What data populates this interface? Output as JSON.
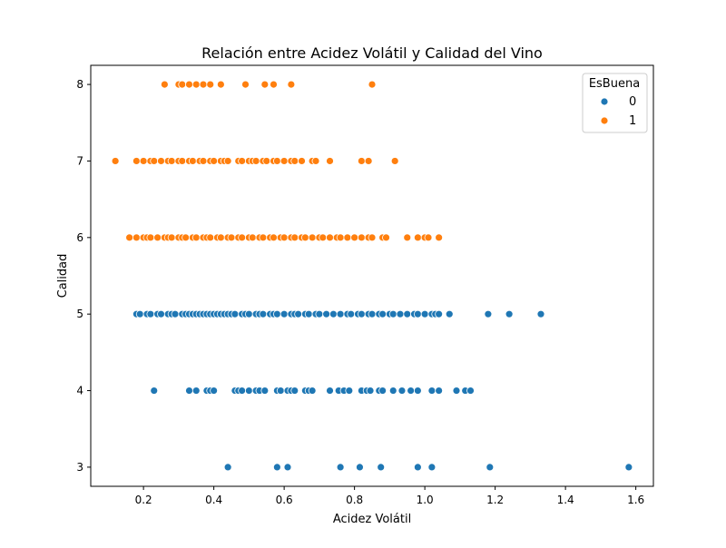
{
  "chart_data": {
    "type": "scatter",
    "title": "Relación entre Acidez Volátil y Calidad del Vino",
    "xlabel": "Acidez Volátil",
    "ylabel": "Calidad",
    "xlim": [
      0.05,
      1.65
    ],
    "ylim": [
      2.75,
      8.25
    ],
    "xticks": [
      "0.2",
      "0.4",
      "0.6",
      "0.8",
      "1.0",
      "1.2",
      "1.4",
      "1.6"
    ],
    "yticks": [
      "3",
      "4",
      "5",
      "6",
      "7",
      "8"
    ],
    "grid": false,
    "legend": {
      "title": "EsBuena",
      "position": "top-right"
    },
    "series": [
      {
        "name": "0",
        "color": "#1f77b4",
        "points": [
          [
            0.44,
            3
          ],
          [
            0.58,
            3
          ],
          [
            0.61,
            3
          ],
          [
            0.76,
            3
          ],
          [
            0.815,
            3
          ],
          [
            0.875,
            3
          ],
          [
            0.98,
            3
          ],
          [
            1.02,
            3
          ],
          [
            1.185,
            3
          ],
          [
            1.58,
            3
          ],
          [
            0.23,
            4
          ],
          [
            0.33,
            4
          ],
          [
            0.35,
            4
          ],
          [
            0.38,
            4
          ],
          [
            0.39,
            4
          ],
          [
            0.4,
            4
          ],
          [
            0.46,
            4
          ],
          [
            0.47,
            4
          ],
          [
            0.48,
            4
          ],
          [
            0.5,
            4
          ],
          [
            0.52,
            4
          ],
          [
            0.53,
            4
          ],
          [
            0.545,
            4
          ],
          [
            0.58,
            4
          ],
          [
            0.59,
            4
          ],
          [
            0.61,
            4
          ],
          [
            0.62,
            4
          ],
          [
            0.63,
            4
          ],
          [
            0.66,
            4
          ],
          [
            0.67,
            4
          ],
          [
            0.68,
            4
          ],
          [
            0.73,
            4
          ],
          [
            0.755,
            4
          ],
          [
            0.77,
            4
          ],
          [
            0.785,
            4
          ],
          [
            0.82,
            4
          ],
          [
            0.835,
            4
          ],
          [
            0.845,
            4
          ],
          [
            0.87,
            4
          ],
          [
            0.88,
            4
          ],
          [
            0.91,
            4
          ],
          [
            0.935,
            4
          ],
          [
            0.96,
            4
          ],
          [
            0.98,
            4
          ],
          [
            1.02,
            4
          ],
          [
            1.04,
            4
          ],
          [
            1.09,
            4
          ],
          [
            1.115,
            4
          ],
          [
            1.13,
            4
          ],
          [
            0.18,
            5
          ],
          [
            0.19,
            5
          ],
          [
            0.21,
            5
          ],
          [
            0.22,
            5
          ],
          [
            0.24,
            5
          ],
          [
            0.25,
            5
          ],
          [
            0.27,
            5
          ],
          [
            0.28,
            5
          ],
          [
            0.29,
            5
          ],
          [
            0.31,
            5
          ],
          [
            0.32,
            5
          ],
          [
            0.33,
            5
          ],
          [
            0.34,
            5
          ],
          [
            0.35,
            5
          ],
          [
            0.36,
            5
          ],
          [
            0.37,
            5
          ],
          [
            0.38,
            5
          ],
          [
            0.39,
            5
          ],
          [
            0.4,
            5
          ],
          [
            0.41,
            5
          ],
          [
            0.42,
            5
          ],
          [
            0.43,
            5
          ],
          [
            0.44,
            5
          ],
          [
            0.45,
            5
          ],
          [
            0.46,
            5
          ],
          [
            0.48,
            5
          ],
          [
            0.49,
            5
          ],
          [
            0.5,
            5
          ],
          [
            0.52,
            5
          ],
          [
            0.53,
            5
          ],
          [
            0.54,
            5
          ],
          [
            0.56,
            5
          ],
          [
            0.57,
            5
          ],
          [
            0.58,
            5
          ],
          [
            0.6,
            5
          ],
          [
            0.62,
            5
          ],
          [
            0.63,
            5
          ],
          [
            0.64,
            5
          ],
          [
            0.66,
            5
          ],
          [
            0.67,
            5
          ],
          [
            0.69,
            5
          ],
          [
            0.7,
            5
          ],
          [
            0.72,
            5
          ],
          [
            0.74,
            5
          ],
          [
            0.76,
            5
          ],
          [
            0.78,
            5
          ],
          [
            0.79,
            5
          ],
          [
            0.81,
            5
          ],
          [
            0.82,
            5
          ],
          [
            0.84,
            5
          ],
          [
            0.85,
            5
          ],
          [
            0.87,
            5
          ],
          [
            0.88,
            5
          ],
          [
            0.9,
            5
          ],
          [
            0.91,
            5
          ],
          [
            0.93,
            5
          ],
          [
            0.95,
            5
          ],
          [
            0.97,
            5
          ],
          [
            0.98,
            5
          ],
          [
            1.0,
            5
          ],
          [
            1.02,
            5
          ],
          [
            1.03,
            5
          ],
          [
            1.04,
            5
          ],
          [
            1.07,
            5
          ],
          [
            1.18,
            5
          ],
          [
            1.24,
            5
          ],
          [
            1.33,
            5
          ]
        ]
      },
      {
        "name": "1",
        "color": "#ff7f0e",
        "points": [
          [
            0.16,
            6
          ],
          [
            0.18,
            6
          ],
          [
            0.2,
            6
          ],
          [
            0.21,
            6
          ],
          [
            0.22,
            6
          ],
          [
            0.24,
            6
          ],
          [
            0.26,
            6
          ],
          [
            0.27,
            6
          ],
          [
            0.28,
            6
          ],
          [
            0.3,
            6
          ],
          [
            0.31,
            6
          ],
          [
            0.32,
            6
          ],
          [
            0.34,
            6
          ],
          [
            0.35,
            6
          ],
          [
            0.37,
            6
          ],
          [
            0.38,
            6
          ],
          [
            0.39,
            6
          ],
          [
            0.41,
            6
          ],
          [
            0.42,
            6
          ],
          [
            0.44,
            6
          ],
          [
            0.45,
            6
          ],
          [
            0.47,
            6
          ],
          [
            0.48,
            6
          ],
          [
            0.5,
            6
          ],
          [
            0.51,
            6
          ],
          [
            0.53,
            6
          ],
          [
            0.54,
            6
          ],
          [
            0.56,
            6
          ],
          [
            0.57,
            6
          ],
          [
            0.59,
            6
          ],
          [
            0.6,
            6
          ],
          [
            0.62,
            6
          ],
          [
            0.63,
            6
          ],
          [
            0.65,
            6
          ],
          [
            0.66,
            6
          ],
          [
            0.68,
            6
          ],
          [
            0.7,
            6
          ],
          [
            0.71,
            6
          ],
          [
            0.73,
            6
          ],
          [
            0.75,
            6
          ],
          [
            0.76,
            6
          ],
          [
            0.78,
            6
          ],
          [
            0.8,
            6
          ],
          [
            0.82,
            6
          ],
          [
            0.84,
            6
          ],
          [
            0.85,
            6
          ],
          [
            0.88,
            6
          ],
          [
            0.89,
            6
          ],
          [
            0.95,
            6
          ],
          [
            0.98,
            6
          ],
          [
            1.0,
            6
          ],
          [
            1.01,
            6
          ],
          [
            1.04,
            6
          ],
          [
            0.12,
            7
          ],
          [
            0.18,
            7
          ],
          [
            0.2,
            7
          ],
          [
            0.22,
            7
          ],
          [
            0.23,
            7
          ],
          [
            0.25,
            7
          ],
          [
            0.27,
            7
          ],
          [
            0.28,
            7
          ],
          [
            0.3,
            7
          ],
          [
            0.31,
            7
          ],
          [
            0.33,
            7
          ],
          [
            0.34,
            7
          ],
          [
            0.36,
            7
          ],
          [
            0.37,
            7
          ],
          [
            0.39,
            7
          ],
          [
            0.4,
            7
          ],
          [
            0.42,
            7
          ],
          [
            0.43,
            7
          ],
          [
            0.44,
            7
          ],
          [
            0.47,
            7
          ],
          [
            0.48,
            7
          ],
          [
            0.5,
            7
          ],
          [
            0.51,
            7
          ],
          [
            0.52,
            7
          ],
          [
            0.54,
            7
          ],
          [
            0.55,
            7
          ],
          [
            0.57,
            7
          ],
          [
            0.58,
            7
          ],
          [
            0.6,
            7
          ],
          [
            0.62,
            7
          ],
          [
            0.63,
            7
          ],
          [
            0.65,
            7
          ],
          [
            0.68,
            7
          ],
          [
            0.69,
            7
          ],
          [
            0.73,
            7
          ],
          [
            0.82,
            7
          ],
          [
            0.84,
            7
          ],
          [
            0.915,
            7
          ],
          [
            0.26,
            8
          ],
          [
            0.3,
            8
          ],
          [
            0.31,
            8
          ],
          [
            0.33,
            8
          ],
          [
            0.35,
            8
          ],
          [
            0.37,
            8
          ],
          [
            0.39,
            8
          ],
          [
            0.42,
            8
          ],
          [
            0.49,
            8
          ],
          [
            0.545,
            8
          ],
          [
            0.57,
            8
          ],
          [
            0.62,
            8
          ],
          [
            0.85,
            8
          ]
        ]
      }
    ]
  }
}
